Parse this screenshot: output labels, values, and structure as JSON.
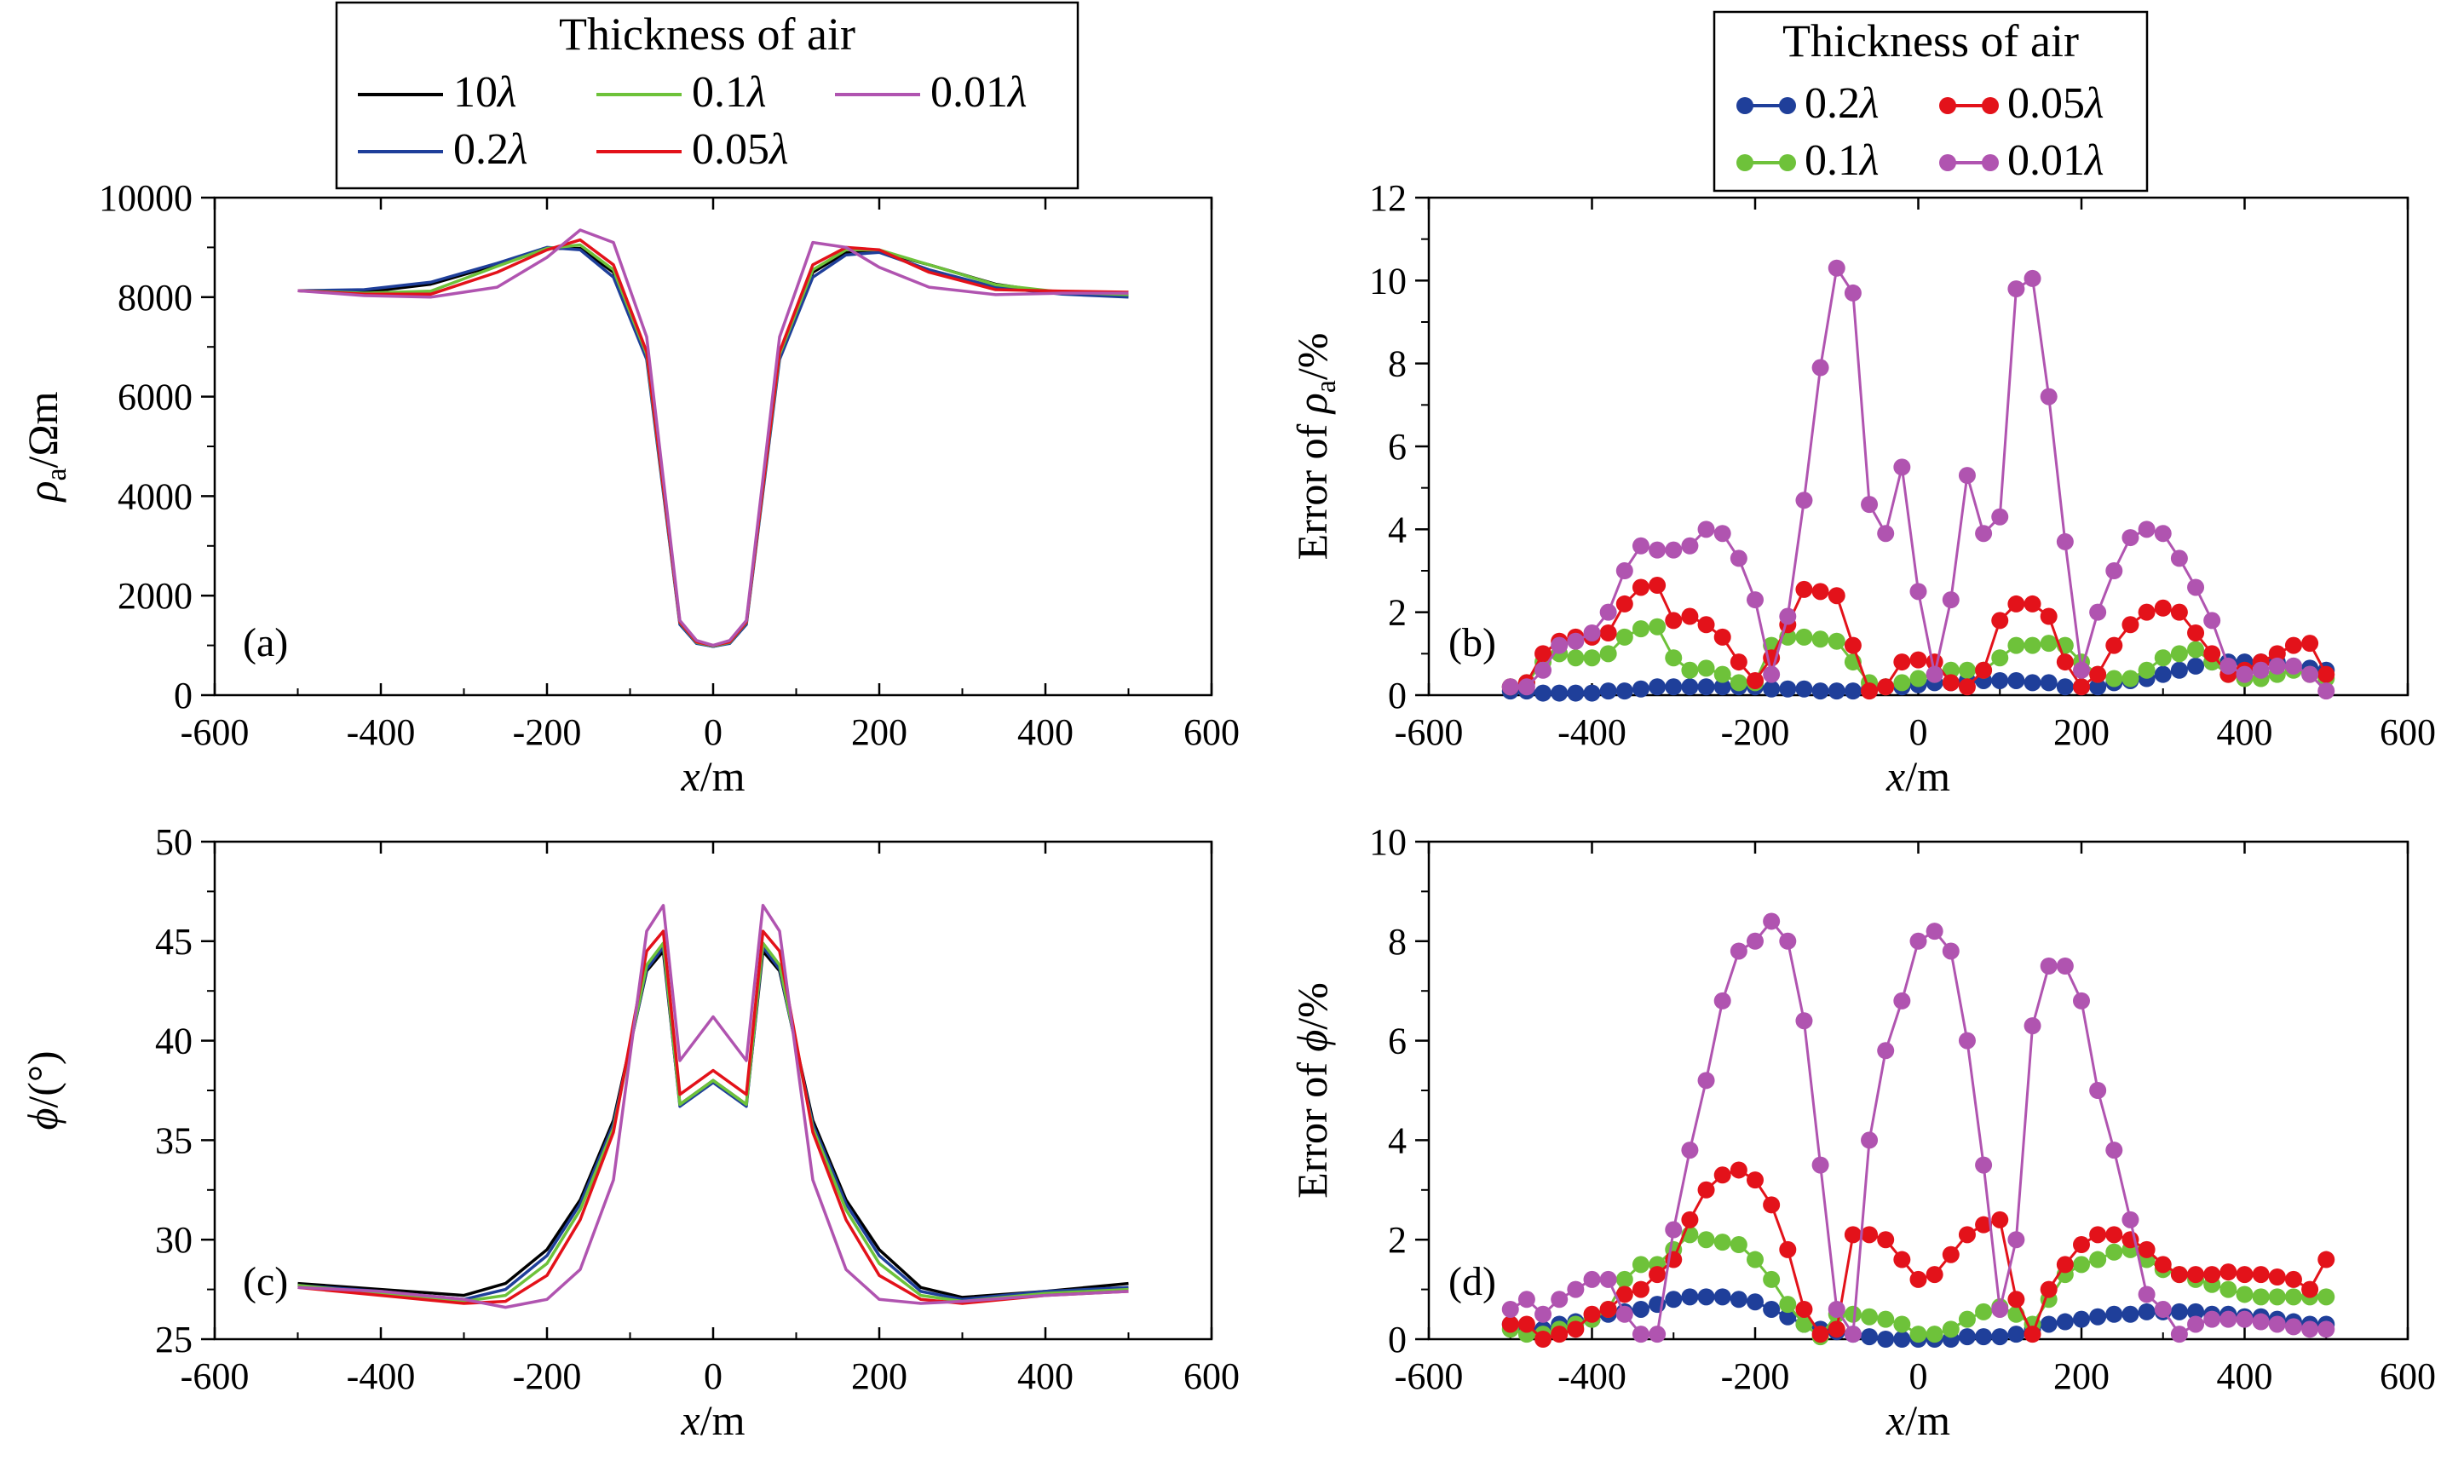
{
  "legend_title": "Thickness of air",
  "colors": {
    "10λ": "#000000",
    "0.2λ": "#1f3f9a",
    "0.1λ": "#6ec23a",
    "0.05λ": "#e3121a",
    "0.01λ": "#b054b0"
  },
  "chart_data": [
    {
      "id": "a",
      "type": "line",
      "panel_label": "(a)",
      "xlabel": "x/m",
      "ylabel": "ρa/Ωm",
      "xlim": [
        -600,
        600
      ],
      "ylim": [
        0,
        10000
      ],
      "xticks": [
        -600,
        -400,
        -200,
        0,
        200,
        400,
        600
      ],
      "yticks": [
        0,
        2000,
        4000,
        6000,
        8000,
        10000
      ],
      "x": [
        -500,
        -420,
        -340,
        -260,
        -200,
        -160,
        -120,
        -80,
        -40,
        -20,
        0,
        20,
        40,
        80,
        120,
        160,
        200,
        260,
        340,
        420,
        500
      ],
      "series": [
        {
          "name": "10λ",
          "values": [
            8130,
            8100,
            8260,
            8650,
            8980,
            8980,
            8500,
            6800,
            1450,
            1050,
            980,
            1050,
            1450,
            6800,
            8500,
            8900,
            8920,
            8650,
            8260,
            8070,
            8030
          ]
        },
        {
          "name": "0.2λ",
          "values": [
            8130,
            8150,
            8300,
            8680,
            9000,
            8950,
            8400,
            6750,
            1420,
            1040,
            980,
            1040,
            1420,
            6750,
            8400,
            8850,
            8900,
            8550,
            8200,
            8060,
            8000
          ]
        },
        {
          "name": "0.1λ",
          "values": [
            8130,
            8080,
            8120,
            8620,
            8980,
            9050,
            8550,
            6850,
            1460,
            1060,
            990,
            1060,
            1460,
            6850,
            8550,
            8950,
            8950,
            8650,
            8250,
            8100,
            8050
          ]
        },
        {
          "name": "0.05λ",
          "values": [
            8130,
            8060,
            8060,
            8500,
            8950,
            9150,
            8650,
            6900,
            1470,
            1070,
            1000,
            1070,
            1470,
            6900,
            8650,
            9000,
            8950,
            8500,
            8150,
            8120,
            8100
          ]
        },
        {
          "name": "0.01λ",
          "values": [
            8130,
            8030,
            8000,
            8200,
            8800,
            9350,
            9100,
            7200,
            1500,
            1100,
            1000,
            1100,
            1500,
            7200,
            9100,
            9000,
            8600,
            8200,
            8050,
            8080,
            8080
          ]
        }
      ]
    },
    {
      "id": "b",
      "type": "line",
      "panel_label": "(b)",
      "xlabel": "x/m",
      "ylabel": "Error of ρa/%",
      "xlim": [
        -600,
        600
      ],
      "ylim": [
        0,
        12
      ],
      "xticks": [
        -600,
        -400,
        -200,
        0,
        200,
        400,
        600
      ],
      "yticks": [
        0,
        2,
        4,
        6,
        8,
        10,
        12
      ],
      "x": [
        -500,
        -480,
        -460,
        -440,
        -420,
        -400,
        -380,
        -360,
        -340,
        -320,
        -300,
        -280,
        -260,
        -240,
        -220,
        -200,
        -180,
        -160,
        -140,
        -120,
        -100,
        -80,
        -60,
        -40,
        -20,
        0,
        20,
        40,
        60,
        80,
        100,
        120,
        140,
        160,
        180,
        200,
        220,
        240,
        260,
        280,
        300,
        320,
        340,
        360,
        380,
        400,
        420,
        440,
        460,
        480,
        500
      ],
      "series": [
        {
          "name": "0.2λ",
          "values": [
            0.1,
            0.1,
            0.05,
            0.05,
            0.05,
            0.05,
            0.1,
            0.1,
            0.15,
            0.2,
            0.2,
            0.2,
            0.2,
            0.2,
            0.2,
            0.2,
            0.15,
            0.15,
            0.15,
            0.1,
            0.1,
            0.1,
            0.15,
            0.2,
            0.2,
            0.25,
            0.3,
            0.3,
            0.35,
            0.35,
            0.35,
            0.35,
            0.3,
            0.3,
            0.2,
            0.2,
            0.2,
            0.3,
            0.35,
            0.4,
            0.5,
            0.6,
            0.7,
            0.8,
            0.8,
            0.8,
            0.8,
            0.8,
            0.7,
            0.65,
            0.6
          ]
        },
        {
          "name": "0.1λ",
          "values": [
            0.2,
            0.3,
            0.8,
            1.0,
            0.9,
            0.9,
            1.0,
            1.4,
            1.6,
            1.65,
            0.9,
            0.6,
            0.65,
            0.5,
            0.3,
            0.3,
            1.2,
            1.4,
            1.4,
            1.35,
            1.3,
            0.8,
            0.3,
            0.2,
            0.3,
            0.4,
            0.5,
            0.6,
            0.6,
            0.6,
            0.9,
            1.2,
            1.2,
            1.25,
            1.2,
            0.8,
            0.5,
            0.4,
            0.4,
            0.6,
            0.9,
            1.0,
            1.1,
            0.8,
            0.5,
            0.4,
            0.4,
            0.5,
            0.6,
            0.5,
            0.4
          ]
        },
        {
          "name": "0.05λ",
          "values": [
            0.2,
            0.3,
            1.0,
            1.3,
            1.4,
            1.4,
            1.5,
            2.2,
            2.6,
            2.65,
            1.8,
            1.9,
            1.7,
            1.4,
            0.8,
            0.35,
            0.9,
            1.7,
            2.55,
            2.5,
            2.4,
            1.2,
            0.1,
            0.2,
            0.8,
            0.85,
            0.8,
            0.3,
            0.2,
            0.6,
            1.8,
            2.2,
            2.2,
            1.9,
            0.8,
            0.2,
            0.5,
            1.2,
            1.7,
            2.0,
            2.1,
            2.0,
            1.5,
            1.0,
            0.5,
            0.6,
            0.8,
            1.0,
            1.2,
            1.25,
            0.5
          ]
        },
        {
          "name": "0.01λ",
          "values": [
            0.2,
            0.2,
            0.6,
            1.2,
            1.3,
            1.5,
            2.0,
            3.0,
            3.6,
            3.5,
            3.5,
            3.6,
            4.0,
            3.9,
            3.3,
            2.3,
            0.5,
            1.9,
            4.7,
            7.9,
            10.3,
            9.7,
            4.6,
            3.9,
            5.5,
            2.5,
            0.5,
            2.3,
            5.3,
            3.9,
            4.3,
            9.8,
            10.05,
            7.2,
            3.7,
            0.6,
            2.0,
            3.0,
            3.8,
            4.0,
            3.9,
            3.3,
            2.6,
            1.8,
            0.7,
            0.5,
            0.6,
            0.7,
            0.7,
            0.5,
            0.1
          ]
        }
      ]
    },
    {
      "id": "c",
      "type": "line",
      "panel_label": "(c)",
      "xlabel": "x/m",
      "ylabel": "ϕ/(°)",
      "xlim": [
        -600,
        600
      ],
      "ylim": [
        25,
        50
      ],
      "xticks": [
        -600,
        -400,
        -200,
        0,
        200,
        400,
        600
      ],
      "yticks": [
        25,
        30,
        35,
        40,
        45,
        50
      ],
      "x": [
        -500,
        -400,
        -300,
        -250,
        -200,
        -160,
        -120,
        -80,
        -60,
        -40,
        0,
        40,
        60,
        80,
        120,
        160,
        200,
        250,
        300,
        400,
        500
      ],
      "series": [
        {
          "name": "10λ",
          "values": [
            27.8,
            27.5,
            27.2,
            27.8,
            29.5,
            32.0,
            36.0,
            43.5,
            44.5,
            36.8,
            38.0,
            36.8,
            44.5,
            43.5,
            36.0,
            32.0,
            29.5,
            27.6,
            27.1,
            27.4,
            27.8
          ]
        },
        {
          "name": "0.2λ",
          "values": [
            27.7,
            27.4,
            27.0,
            27.5,
            29.2,
            31.8,
            35.8,
            43.6,
            44.7,
            36.7,
            37.9,
            36.7,
            44.7,
            43.6,
            35.8,
            31.8,
            29.2,
            27.4,
            27.0,
            27.4,
            27.6
          ]
        },
        {
          "name": "0.1λ",
          "values": [
            27.7,
            27.3,
            26.9,
            27.2,
            28.8,
            31.5,
            35.6,
            43.8,
            44.9,
            36.8,
            38.0,
            36.8,
            44.9,
            43.8,
            35.6,
            31.5,
            28.8,
            27.2,
            26.9,
            27.3,
            27.5
          ]
        },
        {
          "name": "0.05λ",
          "values": [
            27.6,
            27.2,
            26.8,
            26.9,
            28.2,
            31.0,
            35.4,
            44.5,
            45.5,
            37.3,
            38.5,
            37.3,
            45.5,
            44.5,
            35.4,
            31.0,
            28.2,
            27.0,
            26.8,
            27.2,
            27.4
          ]
        },
        {
          "name": "0.01λ",
          "values": [
            27.6,
            27.4,
            27.0,
            26.6,
            27.0,
            28.5,
            33.0,
            45.5,
            46.8,
            39.0,
            41.2,
            39.0,
            46.8,
            45.5,
            33.0,
            28.5,
            27.0,
            26.8,
            26.9,
            27.2,
            27.4
          ]
        }
      ]
    },
    {
      "id": "d",
      "type": "line",
      "panel_label": "(d)",
      "xlabel": "x/m",
      "ylabel": "Error of ϕ/%",
      "xlim": [
        -600,
        600
      ],
      "ylim": [
        0,
        10
      ],
      "xticks": [
        -600,
        -400,
        -200,
        0,
        200,
        400,
        600
      ],
      "yticks": [
        0,
        2,
        4,
        6,
        8,
        10
      ],
      "x": [
        -500,
        -480,
        -460,
        -440,
        -420,
        -400,
        -380,
        -360,
        -340,
        -320,
        -300,
        -280,
        -260,
        -240,
        -220,
        -200,
        -180,
        -160,
        -140,
        -120,
        -100,
        -80,
        -60,
        -40,
        -20,
        0,
        20,
        40,
        60,
        80,
        100,
        120,
        140,
        160,
        180,
        200,
        220,
        240,
        260,
        280,
        300,
        320,
        340,
        360,
        380,
        400,
        420,
        440,
        460,
        480,
        500
      ],
      "series": [
        {
          "name": "0.2λ",
          "values": [
            0.3,
            0.2,
            0.2,
            0.3,
            0.35,
            0.4,
            0.5,
            0.55,
            0.6,
            0.7,
            0.8,
            0.85,
            0.85,
            0.85,
            0.8,
            0.75,
            0.6,
            0.45,
            0.3,
            0.2,
            0.15,
            0.1,
            0.05,
            0.0,
            0.0,
            0.0,
            0.0,
            0.0,
            0.05,
            0.05,
            0.05,
            0.1,
            0.2,
            0.3,
            0.35,
            0.4,
            0.45,
            0.5,
            0.5,
            0.55,
            0.55,
            0.55,
            0.55,
            0.5,
            0.5,
            0.45,
            0.45,
            0.4,
            0.35,
            0.3,
            0.3
          ]
        },
        {
          "name": "0.1λ",
          "values": [
            0.2,
            0.1,
            0.1,
            0.2,
            0.3,
            0.4,
            0.6,
            1.2,
            1.5,
            1.5,
            1.8,
            2.1,
            2.0,
            1.95,
            1.9,
            1.6,
            1.2,
            0.7,
            0.3,
            0.05,
            0.5,
            0.5,
            0.45,
            0.4,
            0.3,
            0.1,
            0.1,
            0.2,
            0.4,
            0.55,
            0.65,
            0.5,
            0.3,
            0.8,
            1.3,
            1.5,
            1.6,
            1.75,
            1.8,
            1.6,
            1.4,
            1.3,
            1.2,
            1.1,
            1.0,
            0.9,
            0.85,
            0.85,
            0.85,
            0.85,
            0.85
          ]
        },
        {
          "name": "0.05λ",
          "values": [
            0.3,
            0.3,
            0.0,
            0.1,
            0.2,
            0.5,
            0.6,
            0.9,
            1.0,
            1.3,
            1.6,
            2.4,
            3.0,
            3.3,
            3.4,
            3.2,
            2.7,
            1.8,
            0.6,
            0.1,
            0.2,
            2.1,
            2.1,
            2.0,
            1.6,
            1.2,
            1.3,
            1.7,
            2.1,
            2.3,
            2.4,
            0.8,
            0.1,
            1.0,
            1.5,
            1.9,
            2.1,
            2.1,
            2.0,
            1.8,
            1.5,
            1.3,
            1.3,
            1.3,
            1.35,
            1.3,
            1.3,
            1.25,
            1.2,
            1.0,
            1.6
          ]
        },
        {
          "name": "0.01λ",
          "values": [
            0.6,
            0.8,
            0.5,
            0.8,
            1.0,
            1.2,
            1.2,
            0.5,
            0.1,
            0.1,
            2.2,
            3.8,
            5.2,
            6.8,
            7.8,
            8.0,
            8.4,
            8.0,
            6.4,
            3.5,
            0.6,
            0.1,
            4.0,
            5.8,
            6.8,
            8.0,
            8.2,
            7.8,
            6.0,
            3.5,
            0.6,
            2.0,
            6.3,
            7.5,
            7.5,
            6.8,
            5.0,
            3.8,
            2.4,
            0.9,
            0.6,
            0.1,
            0.3,
            0.4,
            0.4,
            0.4,
            0.35,
            0.3,
            0.25,
            0.2,
            0.2
          ]
        }
      ]
    }
  ]
}
